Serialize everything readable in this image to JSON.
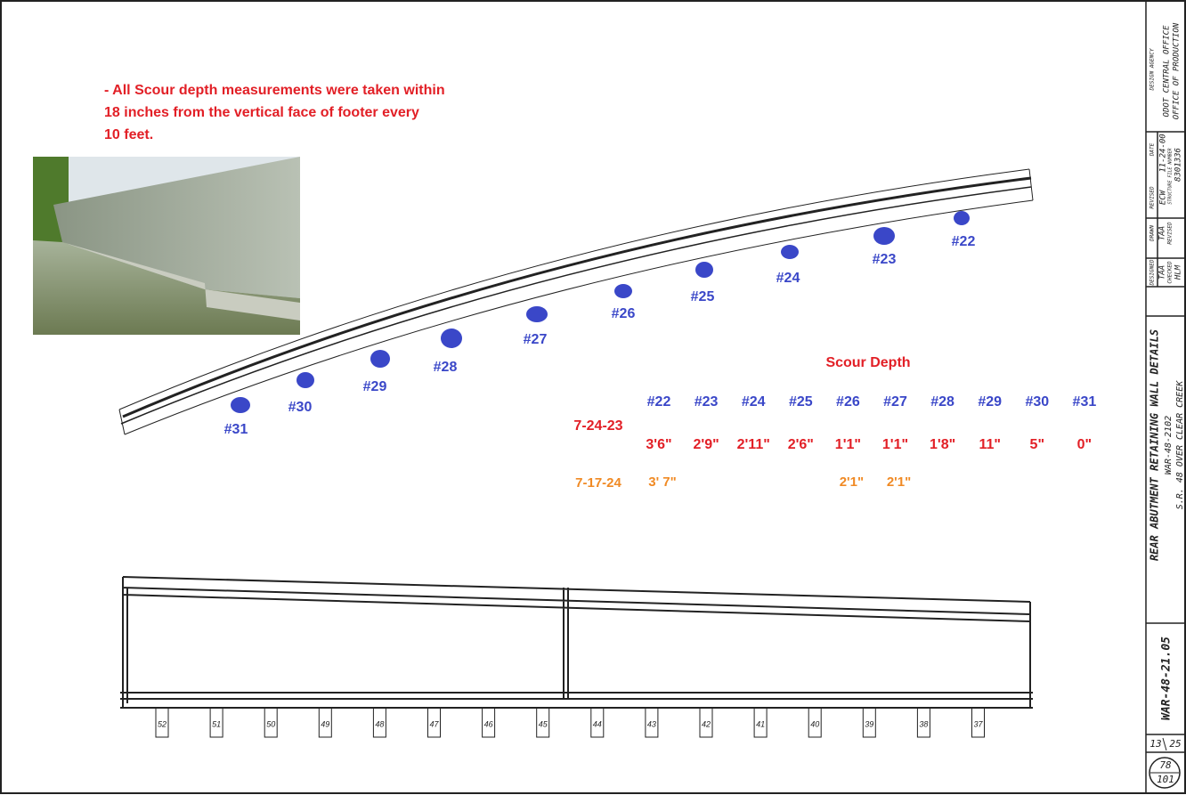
{
  "note": {
    "lines": [
      "- All Scour depth measurements were taken within",
      "18 inches from the vertical face of footer every",
      "10 feet."
    ]
  },
  "points": [
    "#31",
    "#30",
    "#29",
    "#28",
    "#27",
    "#26",
    "#25",
    "#24",
    "#23",
    "#22"
  ],
  "table": {
    "title": "Scour Depth",
    "columns": [
      "#22",
      "#23",
      "#24",
      "#25",
      "#26",
      "#27",
      "#28",
      "#29",
      "#30",
      "#31"
    ],
    "rows": [
      {
        "date": "7-24-23",
        "values": [
          "3'6\"",
          "2'9\"",
          "2'11\"",
          "2'6\"",
          "1'1\"",
          "1'1\"",
          "1'8\"",
          "11\"",
          "5\"",
          "0\""
        ]
      },
      {
        "date": "7-17-24",
        "values": [
          "3' 7\"",
          null,
          null,
          null,
          "2'1\"",
          "2'1\"",
          null,
          null,
          null,
          null
        ]
      }
    ]
  },
  "piles": [
    "52",
    "51",
    "50",
    "49",
    "48",
    "47",
    "46",
    "45",
    "44",
    "43",
    "42",
    "41",
    "40",
    "39",
    "38",
    "37"
  ],
  "title_block": {
    "design_agency_label": "DESIGN AGENCY",
    "agency": "ODOT CENTRAL OFFICE",
    "office": "OFFICE OF PRODUCTION",
    "date_label": "DATE",
    "date": "11-24-00",
    "revised_label": "REVISED",
    "revised": "ECW",
    "file_label": "STRUCTURE FILE NUMBER",
    "file_number": "8301336",
    "drawn_label": "DRAWN",
    "drawn": "TAA",
    "revised2_label": "REVISED",
    "designed_label": "DESIGNED",
    "designed": "TAA",
    "checked_label": "CHECKED",
    "checked": "HLM",
    "sheet_title": "REAR ABUTMENT RETAINING WALL DETAILS",
    "bridge_no": "WAR-48-2102",
    "location": "S.R. 48 OVER CLEAR CREEK",
    "drawing_no": "WAR-48-21.05",
    "sheet": "13",
    "sheets": "25",
    "page": "78",
    "pages": "101"
  }
}
